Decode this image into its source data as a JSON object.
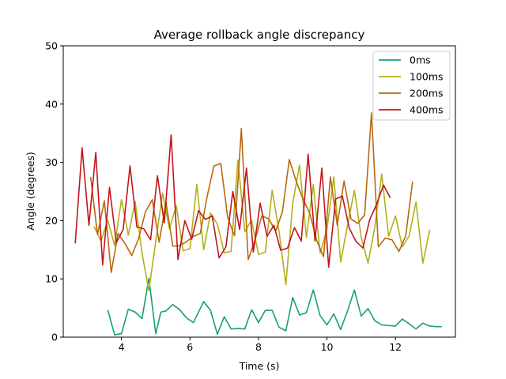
{
  "chart_data": {
    "type": "line",
    "title": "Average rollback angle discrepancy",
    "xlabel": "Time (s)",
    "ylabel": "Angle (degrees)",
    "xlim": [
      2.3,
      13.75
    ],
    "ylim": [
      0,
      50
    ],
    "xticks": [
      4,
      6,
      8,
      10,
      12
    ],
    "yticks": [
      0,
      10,
      20,
      30,
      40,
      50
    ],
    "grid": false,
    "legend_position": "top-right",
    "series": [
      {
        "name": "0ms",
        "color": "#1b9e77",
        "x": [
          3.6,
          3.8,
          4.0,
          4.2,
          4.4,
          4.6,
          4.8,
          5.0,
          5.15,
          5.3,
          5.5,
          5.7,
          5.9,
          6.1,
          6.4,
          6.6,
          6.8,
          7.0,
          7.2,
          7.4,
          7.6,
          7.8,
          8.0,
          8.2,
          8.4,
          8.6,
          8.8,
          9.0,
          9.2,
          9.4,
          9.6,
          9.8,
          10.0,
          10.2,
          10.4,
          10.6,
          10.8,
          11.0,
          11.2,
          11.4,
          11.6,
          11.8,
          12.0,
          12.2,
          12.4,
          12.6,
          12.8,
          13.0,
          13.2,
          13.35
        ],
        "y": [
          4.7,
          0.4,
          0.6,
          4.8,
          4.3,
          3.2,
          10.1,
          0.6,
          4.3,
          4.5,
          5.6,
          4.7,
          3.3,
          2.5,
          6.1,
          4.6,
          0.5,
          3.5,
          1.4,
          1.5,
          1.4,
          4.7,
          2.5,
          4.6,
          4.6,
          1.7,
          1.1,
          6.8,
          3.8,
          4.2,
          8.1,
          3.7,
          2.1,
          4.0,
          1.3,
          4.5,
          8.1,
          3.6,
          4.9,
          2.8,
          2.1,
          2.0,
          1.9,
          3.1,
          2.3,
          1.4,
          2.4,
          1.9,
          1.8,
          1.8
        ]
      },
      {
        "name": "100ms",
        "color": "#b1b119",
        "x": [
          3.2,
          3.4,
          3.6,
          3.8,
          4.0,
          4.2,
          4.4,
          4.6,
          4.8,
          5.0,
          5.2,
          5.4,
          5.6,
          5.8,
          6.0,
          6.2,
          6.4,
          6.6,
          6.8,
          7.0,
          7.2,
          7.4,
          7.6,
          7.8,
          8.0,
          8.2,
          8.4,
          8.6,
          8.8,
          9.0,
          9.2,
          9.4,
          9.6,
          9.8,
          10.0,
          10.2,
          10.4,
          10.6,
          10.8,
          11.0,
          11.2,
          11.4,
          11.6,
          11.8,
          12.0,
          12.2,
          12.4,
          12.6,
          12.8,
          13.0
        ],
        "y": [
          19.0,
          16.5,
          20.1,
          15.7,
          23.6,
          17.5,
          23.3,
          14.4,
          8.0,
          16.4,
          24.7,
          18.6,
          22.6,
          14.8,
          15.2,
          26.2,
          15.0,
          21.3,
          19.4,
          14.5,
          14.7,
          30.4,
          18.1,
          20.1,
          14.2,
          14.6,
          25.2,
          18.2,
          9.0,
          23.0,
          29.5,
          17.1,
          26.2,
          14.4,
          18.5,
          27.5,
          12.9,
          19.2,
          25.2,
          17.2,
          12.7,
          19.0,
          28.0,
          17.3,
          20.8,
          15.5,
          17.4,
          23.2,
          12.7,
          18.4
        ]
      },
      {
        "name": "200ms",
        "color": "#b8690e",
        "x": [
          3.1,
          3.3,
          3.5,
          3.7,
          3.9,
          4.1,
          4.3,
          4.5,
          4.7,
          4.9,
          5.1,
          5.3,
          5.5,
          5.7,
          5.9,
          6.1,
          6.3,
          6.5,
          6.7,
          6.9,
          7.1,
          7.3,
          7.5,
          7.7,
          7.9,
          8.1,
          8.3,
          8.5,
          8.7,
          8.9,
          9.1,
          9.3,
          9.5,
          9.7,
          9.9,
          10.1,
          10.3,
          10.5,
          10.7,
          10.9,
          11.1,
          11.3,
          11.5,
          11.7,
          11.9,
          12.1,
          12.3,
          12.5
        ],
        "y": [
          27.5,
          17.6,
          23.4,
          11.1,
          17.8,
          16.1,
          14.0,
          16.9,
          21.5,
          23.6,
          16.3,
          23.1,
          15.6,
          15.7,
          16.4,
          17.3,
          17.8,
          24.1,
          29.4,
          29.8,
          20.6,
          17.4,
          35.8,
          13.3,
          16.7,
          20.8,
          20.3,
          18.2,
          21.5,
          30.5,
          26.8,
          23.7,
          21.2,
          16.6,
          13.8,
          27.5,
          19.2,
          26.8,
          20.3,
          19.5,
          21.0,
          38.5,
          15.5,
          17.0,
          16.7,
          14.7,
          17.4,
          26.7
        ]
      },
      {
        "name": "400ms",
        "color": "#c4141c",
        "x": [
          2.65,
          2.85,
          3.05,
          3.25,
          3.45,
          3.65,
          3.85,
          4.05,
          4.25,
          4.45,
          4.65,
          4.85,
          5.05,
          5.25,
          5.45,
          5.65,
          5.85,
          6.05,
          6.25,
          6.45,
          6.65,
          6.85,
          7.05,
          7.25,
          7.45,
          7.65,
          7.85,
          8.05,
          8.25,
          8.45,
          8.65,
          8.85,
          9.05,
          9.25,
          9.45,
          9.65,
          9.85,
          10.05,
          10.25,
          10.45,
          10.65,
          10.85,
          11.05,
          11.25,
          11.45,
          11.65,
          11.85
        ],
        "y": [
          16.1,
          32.5,
          19.2,
          31.7,
          12.4,
          25.7,
          16.2,
          18.5,
          29.4,
          18.9,
          18.6,
          16.7,
          27.7,
          19.6,
          34.7,
          13.3,
          20.0,
          16.8,
          21.7,
          20.2,
          20.8,
          13.6,
          15.5,
          25.0,
          18.5,
          29.0,
          14.6,
          23.0,
          17.3,
          19.2,
          14.9,
          15.3,
          18.8,
          16.5,
          31.4,
          16.5,
          29.0,
          12.0,
          23.7,
          24.2,
          18.7,
          16.4,
          15.3,
          20.2,
          22.8,
          26.1,
          23.9
        ]
      }
    ]
  }
}
